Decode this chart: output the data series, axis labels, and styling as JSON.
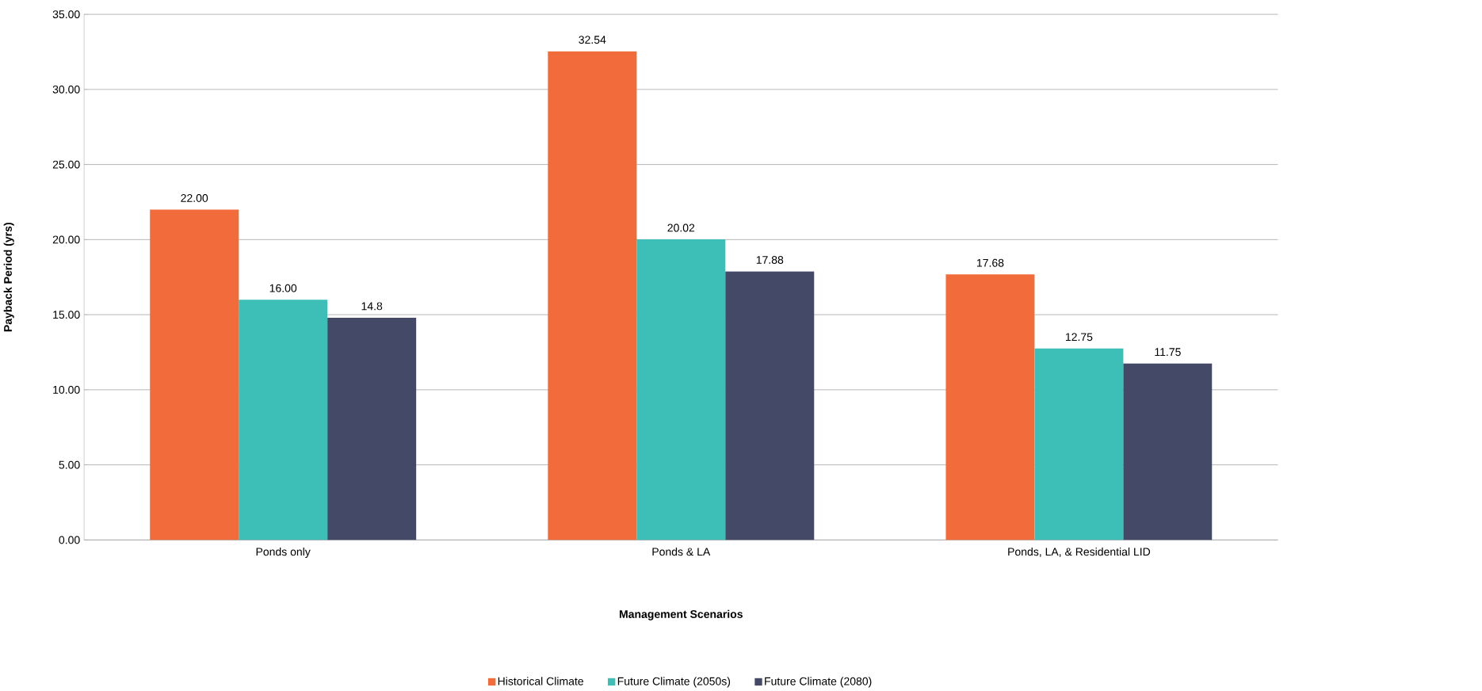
{
  "chart_data": {
    "type": "bar",
    "xlabel": "Management Scenarios",
    "ylabel": "Payback Period (yrs)",
    "categories": [
      "Ponds only",
      "Ponds & LA",
      "Ponds, LA, & Residential LID"
    ],
    "series": [
      {
        "name": "Historical Climate",
        "color": "#f26b3a",
        "values": [
          22.0,
          32.54,
          17.68
        ],
        "value_labels": [
          "22.00",
          "32.54",
          "17.68"
        ]
      },
      {
        "name": "Future Climate (2050s)",
        "color": "#3dbfb8",
        "values": [
          16.0,
          20.02,
          12.75
        ],
        "value_labels": [
          "16.00",
          "20.02",
          "12.75"
        ]
      },
      {
        "name": "Future Climate (2080)",
        "color": "#434966",
        "values": [
          14.8,
          17.88,
          11.75
        ],
        "value_labels": [
          "14.8",
          "17.88",
          "11.75"
        ]
      }
    ],
    "ylim": [
      0,
      35
    ],
    "yticks": [
      {
        "value": 0,
        "label": "0.00"
      },
      {
        "value": 5,
        "label": "5.00"
      },
      {
        "value": 10,
        "label": "10.00"
      },
      {
        "value": 15,
        "label": "15.00"
      },
      {
        "value": 20,
        "label": "20.00"
      },
      {
        "value": 25,
        "label": "25.00"
      },
      {
        "value": 30,
        "label": "30.00"
      },
      {
        "value": 35,
        "label": "35.00"
      }
    ],
    "grid": "y",
    "legend": "bottom"
  }
}
